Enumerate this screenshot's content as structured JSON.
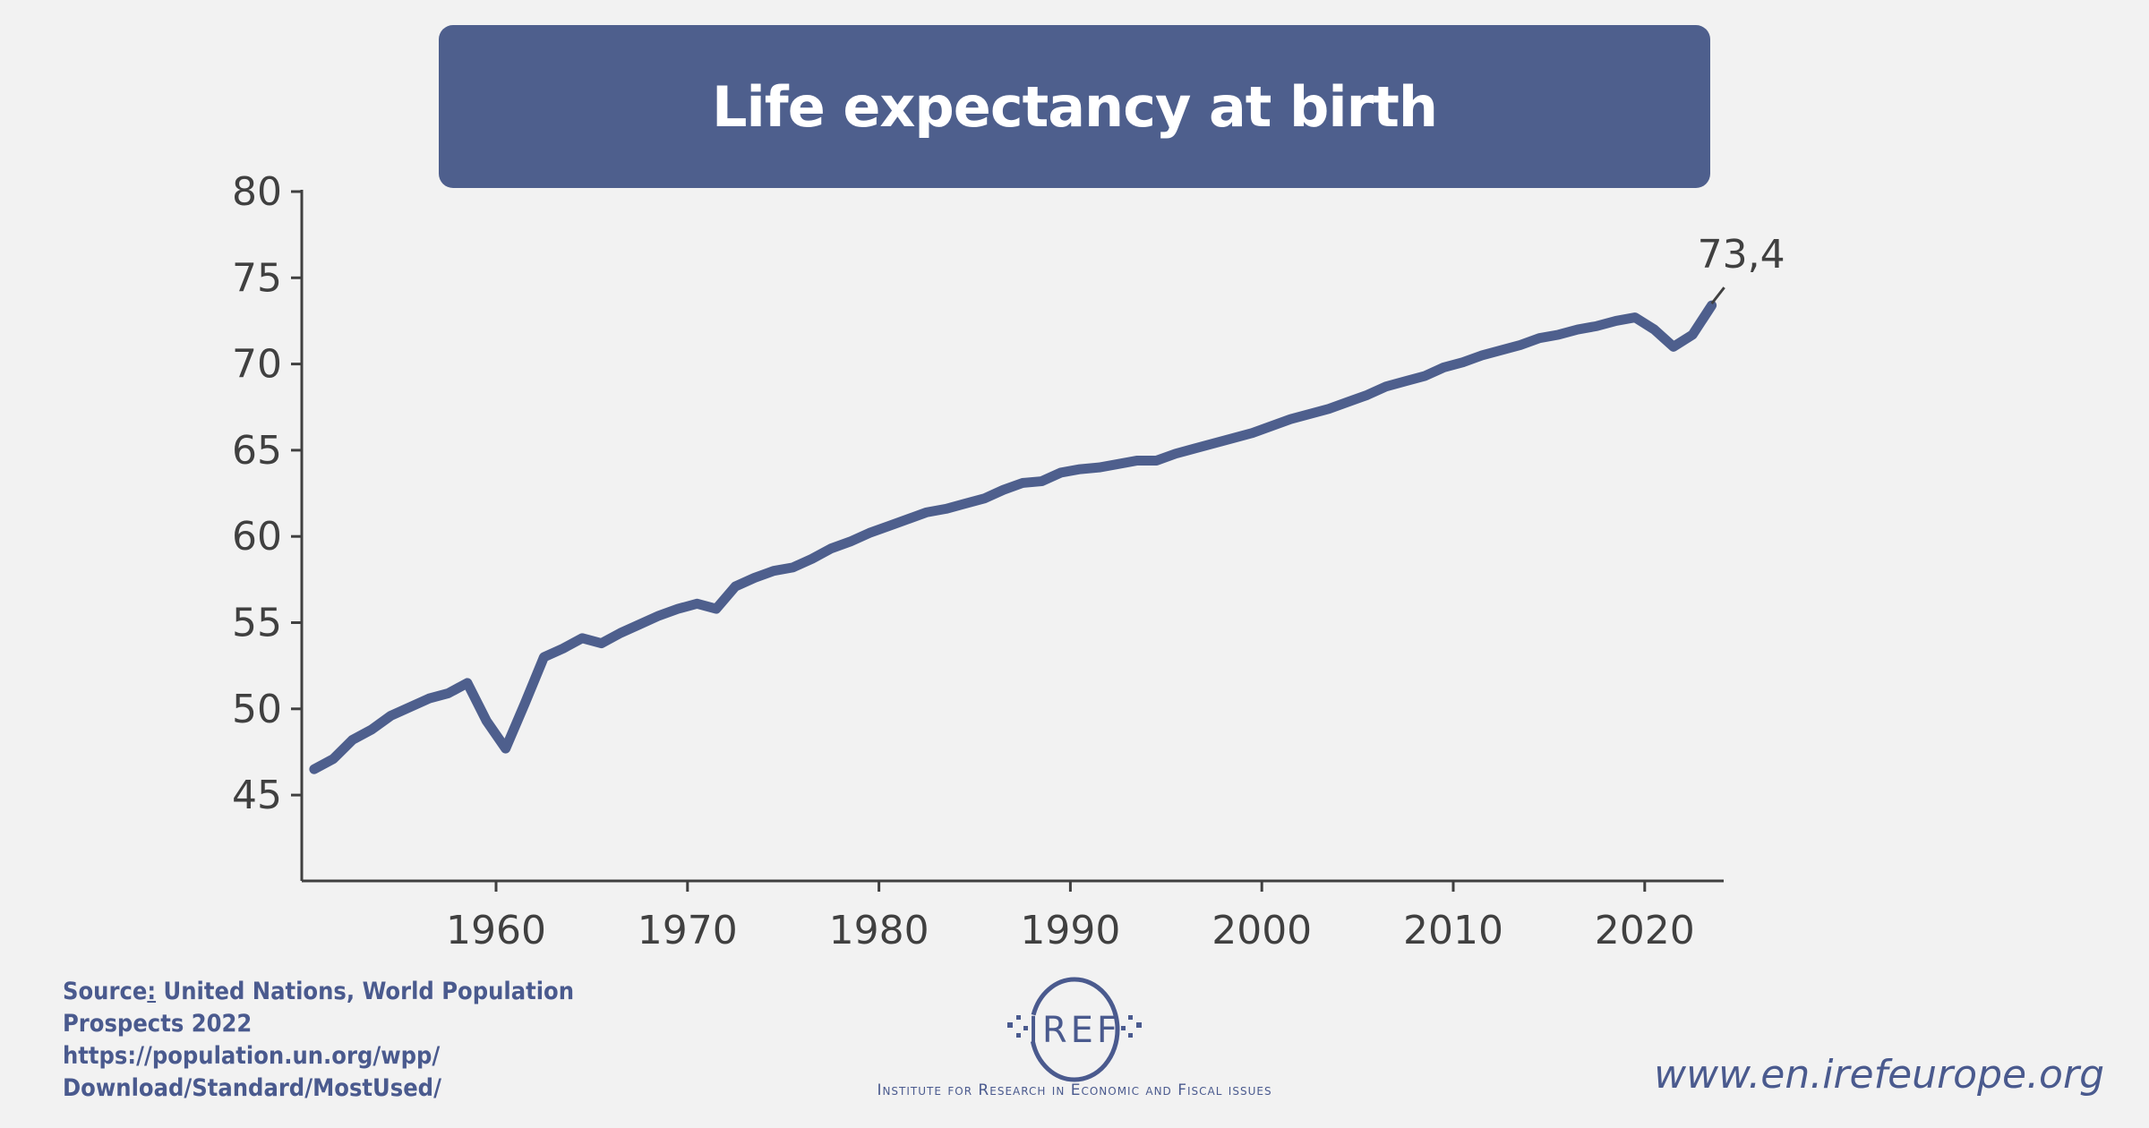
{
  "chart_data": {
    "type": "line",
    "title": "Life expectancy at birth",
    "xlabel": "",
    "ylabel": "",
    "ylim": [
      40,
      80
    ],
    "xlim": [
      1950,
      2024
    ],
    "yticks": [
      45,
      50,
      55,
      60,
      65,
      70,
      75,
      80
    ],
    "xticks": [
      1960,
      1970,
      1980,
      1990,
      2000,
      2010,
      2020
    ],
    "grid": false,
    "annotation": {
      "year": 2023,
      "label": "73,4"
    },
    "series": [
      {
        "name": "Life expectancy at birth",
        "color": "#4e5f8d",
        "x": [
          1950,
          1951,
          1952,
          1953,
          1954,
          1955,
          1956,
          1957,
          1958,
          1959,
          1960,
          1961,
          1962,
          1963,
          1964,
          1965,
          1966,
          1967,
          1968,
          1969,
          1970,
          1971,
          1972,
          1973,
          1974,
          1975,
          1976,
          1977,
          1978,
          1979,
          1980,
          1981,
          1982,
          1983,
          1984,
          1985,
          1986,
          1987,
          1988,
          1989,
          1990,
          1991,
          1992,
          1993,
          1994,
          1995,
          1996,
          1997,
          1998,
          1999,
          2000,
          2001,
          2002,
          2003,
          2004,
          2005,
          2006,
          2007,
          2008,
          2009,
          2010,
          2011,
          2012,
          2013,
          2014,
          2015,
          2016,
          2017,
          2018,
          2019,
          2020,
          2021,
          2022,
          2023
        ],
        "values": [
          46.5,
          47.1,
          48.2,
          48.8,
          49.6,
          50.1,
          50.6,
          50.9,
          51.5,
          49.3,
          47.7,
          50.3,
          53.0,
          53.5,
          54.1,
          53.8,
          54.4,
          54.9,
          55.4,
          55.8,
          56.1,
          55.8,
          57.1,
          57.6,
          58.0,
          58.2,
          58.7,
          59.3,
          59.7,
          60.2,
          60.6,
          61.0,
          61.4,
          61.6,
          61.9,
          62.2,
          62.7,
          63.1,
          63.2,
          63.7,
          63.9,
          64.0,
          64.2,
          64.4,
          64.4,
          64.8,
          65.1,
          65.4,
          65.7,
          66.0,
          66.4,
          66.8,
          67.1,
          67.4,
          67.8,
          68.2,
          68.7,
          69.0,
          69.3,
          69.8,
          70.1,
          70.5,
          70.8,
          71.1,
          71.5,
          71.7,
          72.0,
          72.2,
          72.5,
          72.7,
          72.0,
          71.0,
          71.7,
          73.4
        ]
      }
    ]
  },
  "footer": {
    "source_label": "Source",
    "source_colon": ":",
    "source_text": " United Nations, World Population",
    "source_line2": "Prospects 2022",
    "source_line3": "https://population.un.org/wpp/",
    "source_line4": "Download/Standard/MostUsed/",
    "logo_text": "IREF",
    "institute": "Institute for Research in Economic and Fiscal issues",
    "website": "www.en.irefeurope.org"
  },
  "colors": {
    "accent": "#4e5f8d",
    "background": "#f2f2f2",
    "axis": "#404040"
  }
}
